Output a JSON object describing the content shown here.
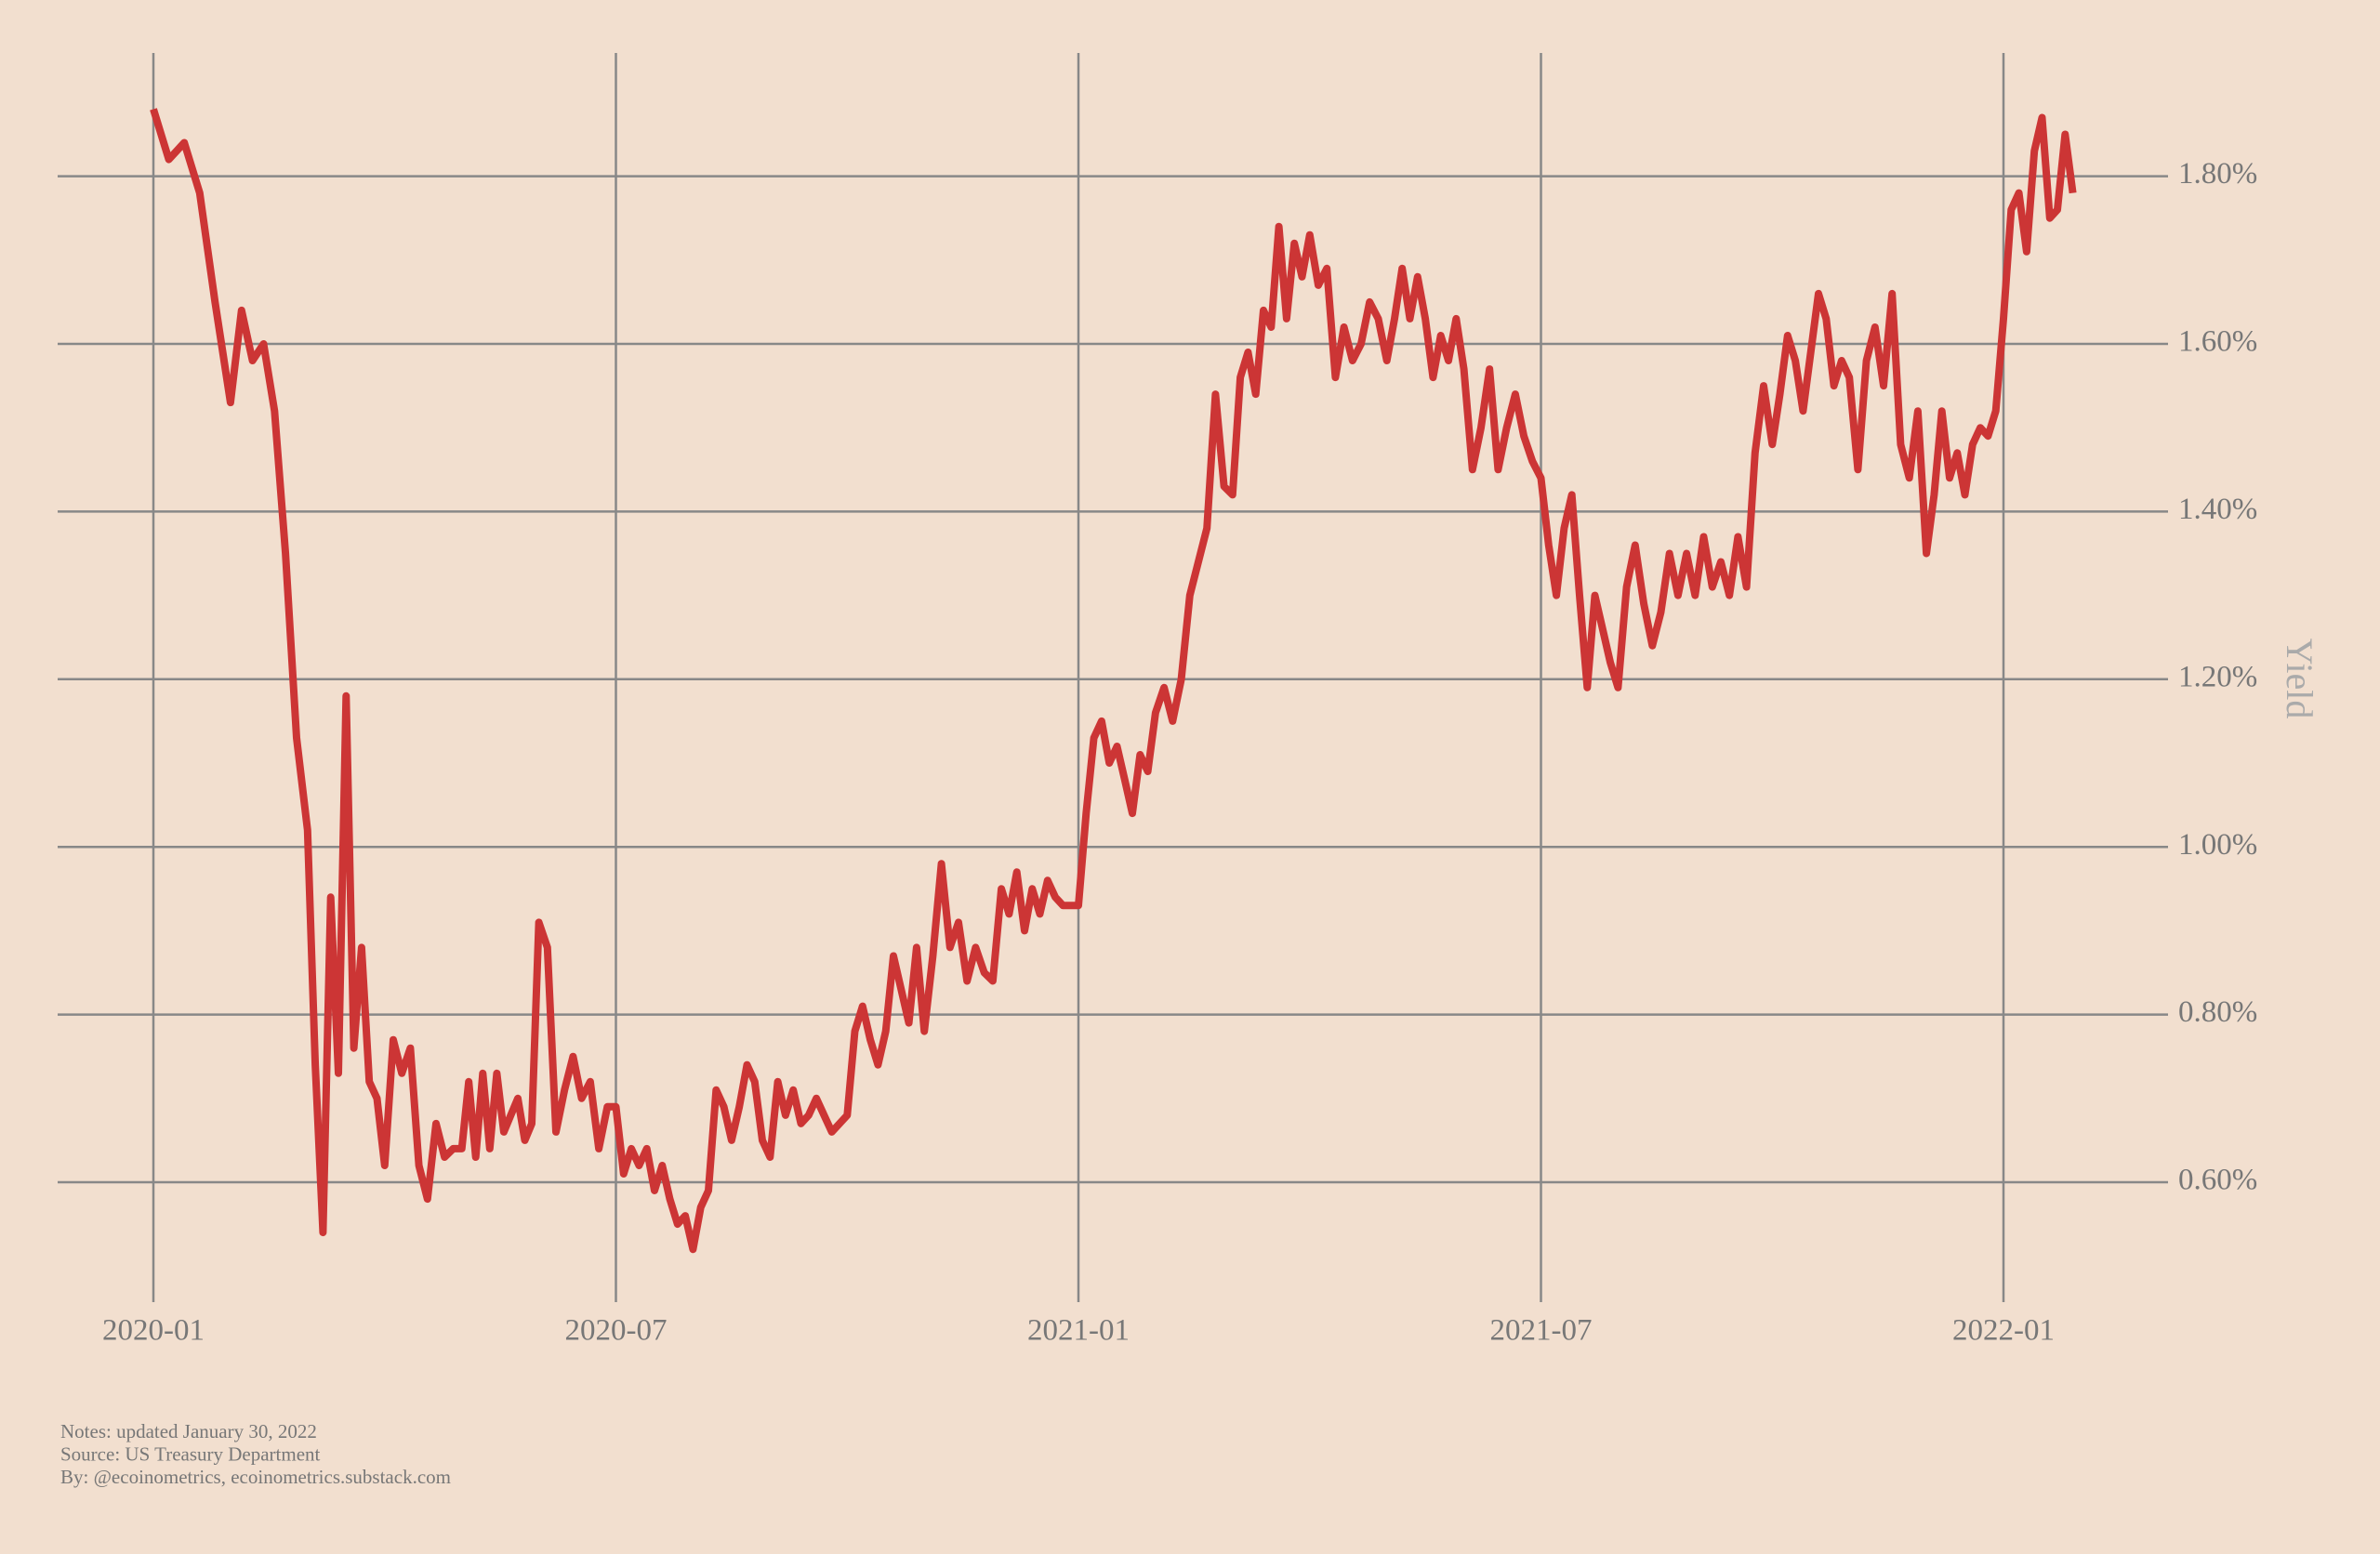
{
  "chart_data": {
    "type": "line",
    "y_label": "Yield",
    "notes": [
      "Notes: updated January 30, 2022",
      "Source: US Treasury Department",
      "By: @ecoinometrics, ecoinometrics.substack.com"
    ],
    "color": "#cc3535",
    "grid": true,
    "ylim": [
      0.457,
      1.947
    ],
    "yticks": [
      {
        "value": 0.6,
        "label": "0.60%"
      },
      {
        "value": 0.8,
        "label": "0.80%"
      },
      {
        "value": 1.0,
        "label": "1.00%"
      },
      {
        "value": 1.2,
        "label": "1.20%"
      },
      {
        "value": 1.4,
        "label": "1.40%"
      },
      {
        "value": 1.6,
        "label": "1.60%"
      },
      {
        "value": 1.8,
        "label": "1.80%"
      }
    ],
    "xticks": [
      "2020-01",
      "2020-07",
      "2021-01",
      "2021-07",
      "2022-01"
    ],
    "x": [
      "2020-01",
      "2020-01",
      "2020-01",
      "2020-01",
      "2020-01",
      "2020-02",
      "2020-02",
      "2020-02",
      "2020-02",
      "2020-02",
      "2020-02",
      "2020-02",
      "2020-03",
      "2020-03",
      "2020-03",
      "2020-03",
      "2020-03",
      "2020-03",
      "2020-03",
      "2020-03",
      "2020-03",
      "2020-03",
      "2020-04",
      "2020-04",
      "2020-04",
      "2020-04",
      "2020-04",
      "2020-04",
      "2020-04",
      "2020-04",
      "2020-04",
      "2020-05",
      "2020-05",
      "2020-05",
      "2020-05",
      "2020-05",
      "2020-05",
      "2020-05",
      "2020-05",
      "2020-05",
      "2020-05",
      "2020-05",
      "2020-06",
      "2020-06",
      "2020-06",
      "2020-06",
      "2020-06",
      "2020-06",
      "2020-06",
      "2020-06",
      "2020-06",
      "2020-07",
      "2020-07",
      "2020-07",
      "2020-07",
      "2020-07",
      "2020-07",
      "2020-07",
      "2020-07",
      "2020-07",
      "2020-07",
      "2020-08",
      "2020-08",
      "2020-08",
      "2020-08",
      "2020-08",
      "2020-08",
      "2020-08",
      "2020-08",
      "2020-08",
      "2020-08",
      "2020-09",
      "2020-09",
      "2020-09",
      "2020-09",
      "2020-09",
      "2020-09",
      "2020-09",
      "2020-09",
      "2020-09",
      "2020-09",
      "2020-10",
      "2020-10",
      "2020-10",
      "2020-10",
      "2020-10",
      "2020-10",
      "2020-10",
      "2020-10",
      "2020-10",
      "2020-10",
      "2020-11",
      "2020-11",
      "2020-11",
      "2020-11",
      "2020-11",
      "2020-11",
      "2020-11",
      "2020-11",
      "2020-11",
      "2020-12",
      "2020-12",
      "2020-12",
      "2020-12",
      "2020-12",
      "2020-12",
      "2020-12",
      "2020-12",
      "2020-12",
      "2020-12",
      "2021-01",
      "2021-01",
      "2021-01",
      "2021-01",
      "2021-01",
      "2021-01",
      "2021-01",
      "2021-01",
      "2021-01",
      "2021-01",
      "2021-02",
      "2021-02",
      "2021-02",
      "2021-02",
      "2021-02",
      "2021-02",
      "2021-02",
      "2021-02",
      "2021-02",
      "2021-03",
      "2021-03",
      "2021-03",
      "2021-03",
      "2021-03",
      "2021-03",
      "2021-03",
      "2021-03",
      "2021-03",
      "2021-03",
      "2021-04",
      "2021-04",
      "2021-04",
      "2021-04",
      "2021-04",
      "2021-04",
      "2021-04",
      "2021-04",
      "2021-04",
      "2021-05",
      "2021-05",
      "2021-05",
      "2021-05",
      "2021-05",
      "2021-05",
      "2021-05",
      "2021-05",
      "2021-05",
      "2021-05",
      "2021-06",
      "2021-06",
      "2021-06",
      "2021-06",
      "2021-06",
      "2021-06",
      "2021-06",
      "2021-06",
      "2021-06",
      "2021-07",
      "2021-07",
      "2021-07",
      "2021-07",
      "2021-07",
      "2021-07",
      "2021-07",
      "2021-07",
      "2021-07",
      "2021-07",
      "2021-08",
      "2021-08",
      "2021-08",
      "2021-08",
      "2021-08",
      "2021-08",
      "2021-08",
      "2021-08",
      "2021-08",
      "2021-09",
      "2021-09",
      "2021-09",
      "2021-09",
      "2021-09",
      "2021-09",
      "2021-09",
      "2021-09",
      "2021-09",
      "2021-10",
      "2021-10",
      "2021-10",
      "2021-10",
      "2021-10",
      "2021-10",
      "2021-10",
      "2021-10",
      "2021-10",
      "2021-10",
      "2021-11",
      "2021-11",
      "2021-11",
      "2021-11",
      "2021-11",
      "2021-11",
      "2021-11",
      "2021-11",
      "2021-11",
      "2021-12",
      "2021-12",
      "2021-12",
      "2021-12",
      "2021-12",
      "2021-12",
      "2021-12",
      "2021-12",
      "2021-12",
      "2021-12",
      "2022-01",
      "2022-01",
      "2022-01",
      "2022-01",
      "2022-01",
      "2022-01",
      "2022-01",
      "2022-01",
      "2022-01",
      "2022-01"
    ],
    "values": [
      1.88,
      1.82,
      1.84,
      1.78,
      1.65,
      1.53,
      1.64,
      1.58,
      1.6,
      1.52,
      1.35,
      1.13,
      1.02,
      0.74,
      0.54,
      0.94,
      0.73,
      1.18,
      0.76,
      0.88,
      0.72,
      0.7,
      0.62,
      0.77,
      0.73,
      0.76,
      0.62,
      0.58,
      0.67,
      0.63,
      0.64,
      0.64,
      0.72,
      0.63,
      0.73,
      0.64,
      0.73,
      0.66,
      0.68,
      0.7,
      0.65,
      0.67,
      0.91,
      0.88,
      0.66,
      0.71,
      0.75,
      0.7,
      0.72,
      0.64,
      0.69,
      0.69,
      0.61,
      0.64,
      0.62,
      0.64,
      0.59,
      0.62,
      0.58,
      0.55,
      0.56,
      0.52,
      0.57,
      0.59,
      0.71,
      0.69,
      0.65,
      0.69,
      0.74,
      0.72,
      0.65,
      0.63,
      0.72,
      0.68,
      0.71,
      0.67,
      0.68,
      0.7,
      0.68,
      0.66,
      0.67,
      0.68,
      0.78,
      0.81,
      0.77,
      0.74,
      0.78,
      0.87,
      0.83,
      0.79,
      0.88,
      0.78,
      0.87,
      0.98,
      0.88,
      0.91,
      0.84,
      0.88,
      0.85,
      0.84,
      0.95,
      0.92,
      0.97,
      0.9,
      0.95,
      0.92,
      0.96,
      0.94,
      0.93,
      0.93,
      0.93,
      1.04,
      1.13,
      1.15,
      1.1,
      1.12,
      1.08,
      1.04,
      1.11,
      1.09,
      1.16,
      1.19,
      1.15,
      1.2,
      1.3,
      1.34,
      1.38,
      1.54,
      1.43,
      1.42,
      1.56,
      1.59,
      1.54,
      1.64,
      1.62,
      1.74,
      1.63,
      1.72,
      1.68,
      1.73,
      1.67,
      1.69,
      1.56,
      1.62,
      1.58,
      1.6,
      1.65,
      1.63,
      1.58,
      1.63,
      1.69,
      1.63,
      1.68,
      1.63,
      1.56,
      1.61,
      1.58,
      1.63,
      1.57,
      1.45,
      1.5,
      1.57,
      1.45,
      1.5,
      1.54,
      1.49,
      1.46,
      1.44,
      1.36,
      1.3,
      1.38,
      1.42,
      1.3,
      1.19,
      1.3,
      1.26,
      1.22,
      1.19,
      1.31,
      1.36,
      1.29,
      1.24,
      1.28,
      1.35,
      1.3,
      1.35,
      1.3,
      1.37,
      1.31,
      1.34,
      1.3,
      1.37,
      1.31,
      1.47,
      1.55,
      1.48,
      1.54,
      1.61,
      1.58,
      1.52,
      1.59,
      1.66,
      1.63,
      1.55,
      1.58,
      1.56,
      1.45,
      1.58,
      1.62,
      1.55,
      1.66,
      1.48,
      1.44,
      1.52,
      1.35,
      1.42,
      1.52,
      1.44,
      1.47,
      1.42,
      1.48,
      1.5,
      1.49,
      1.52,
      1.63,
      1.76,
      1.78,
      1.71,
      1.83,
      1.87,
      1.75,
      1.76,
      1.85,
      1.78
    ]
  }
}
